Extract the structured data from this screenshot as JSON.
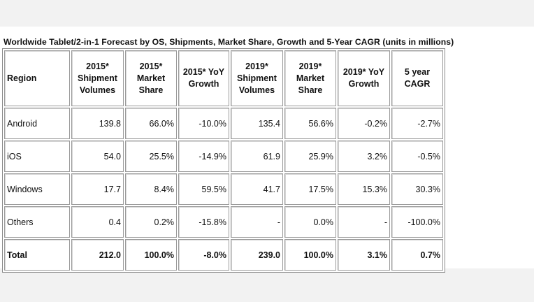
{
  "caption": "Worldwide Tablet/2-in-1 Forecast by OS, Shipments, Market Share, Growth and 5-Year CAGR (units in millions)",
  "columns": [
    "Region",
    "2015* Shipment Volumes",
    "2015* Market Share",
    "2015* YoY Growth",
    "2019* Shipment Volumes",
    "2019* Market Share",
    "2019* YoY Growth",
    "5 year CAGR"
  ],
  "rows": [
    [
      "Android",
      "139.8",
      "66.0%",
      "-10.0%",
      "135.4",
      "56.6%",
      "-0.2%",
      "-2.7%"
    ],
    [
      "iOS",
      "54.0",
      "25.5%",
      "-14.9%",
      "61.9",
      "25.9%",
      "3.2%",
      "-0.5%"
    ],
    [
      "Windows",
      "17.7",
      "8.4%",
      "59.5%",
      "41.7",
      "17.5%",
      "15.3%",
      "30.3%"
    ],
    [
      "Others",
      "0.4",
      "0.2%",
      "-15.8%",
      "-",
      "0.0%",
      "-",
      "-100.0%"
    ]
  ],
  "total": [
    "Total",
    "212.0",
    "100.0%",
    "-8.0%",
    "239.0",
    "100.0%",
    "3.1%",
    "0.7%"
  ]
}
